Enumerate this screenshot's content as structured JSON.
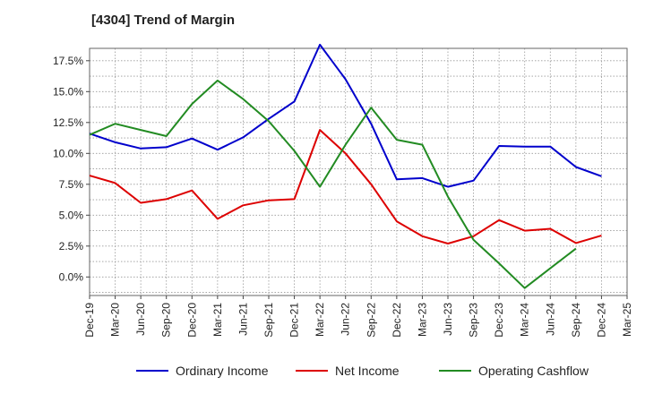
{
  "title": "[4304]  Trend of Margin",
  "chart_data": {
    "type": "line",
    "title": "[4304]  Trend of Margin",
    "xlabel": "",
    "ylabel": "",
    "ylim": [
      -1.5,
      18.5
    ],
    "x_tick_labels": [
      "Dec-19",
      "Mar-20",
      "Jun-20",
      "Sep-20",
      "Dec-20",
      "Mar-21",
      "Jun-21",
      "Sep-21",
      "Dec-21",
      "Mar-22",
      "Jun-22",
      "Sep-22",
      "Dec-22",
      "Mar-23",
      "Jun-23",
      "Sep-23",
      "Dec-23",
      "Mar-24",
      "Jun-24",
      "Sep-24",
      "Dec-24",
      "Mar-25"
    ],
    "y_ticks": [
      0.0,
      2.5,
      5.0,
      7.5,
      10.0,
      12.5,
      15.0,
      17.5
    ],
    "y_tick_labels": [
      "0.0%",
      "2.5%",
      "5.0%",
      "7.5%",
      "10.0%",
      "12.5%",
      "15.0%",
      "17.5%"
    ],
    "grid": true,
    "legend_position": "bottom",
    "series": [
      {
        "name": "Ordinary Income",
        "color": "#0000cc",
        "x": [
          "Dec-19",
          "Mar-20",
          "Jun-20",
          "Sep-20",
          "Dec-20",
          "Mar-21",
          "Jun-21",
          "Sep-21",
          "Dec-21",
          "Mar-22",
          "Jun-22",
          "Sep-22",
          "Dec-22",
          "Mar-23",
          "Jun-23",
          "Sep-23",
          "Dec-23",
          "Mar-24",
          "Jun-24",
          "Sep-24",
          "Dec-24"
        ],
        "values": [
          11.6,
          10.9,
          10.4,
          10.5,
          11.2,
          10.3,
          11.3,
          12.8,
          14.2,
          18.8,
          16.0,
          12.4,
          7.9,
          8.0,
          7.3,
          7.8,
          10.6,
          10.55,
          10.55,
          8.9,
          8.15
        ]
      },
      {
        "name": "Net Income",
        "color": "#dd0000",
        "x": [
          "Dec-19",
          "Mar-20",
          "Jun-20",
          "Sep-20",
          "Dec-20",
          "Mar-21",
          "Jun-21",
          "Sep-21",
          "Dec-21",
          "Mar-22",
          "Jun-22",
          "Sep-22",
          "Dec-22",
          "Mar-23",
          "Jun-23",
          "Sep-23",
          "Dec-23",
          "Mar-24",
          "Jun-24",
          "Sep-24",
          "Dec-24"
        ],
        "values": [
          8.2,
          7.6,
          6.0,
          6.3,
          7.0,
          4.7,
          5.8,
          6.2,
          6.3,
          11.9,
          10.0,
          7.5,
          4.5,
          3.3,
          2.7,
          3.3,
          4.6,
          3.75,
          3.9,
          2.75,
          3.35
        ]
      },
      {
        "name": "Operating Cashflow",
        "color": "#228b22",
        "x": [
          "Dec-19",
          "Mar-20",
          "Jun-20",
          "Sep-20",
          "Dec-20",
          "Mar-21",
          "Jun-21",
          "Sep-21",
          "Dec-21",
          "Mar-22",
          "Jun-22",
          "Sep-22",
          "Dec-22",
          "Mar-23",
          "Jun-23",
          "Sep-23",
          "Dec-23",
          "Mar-24",
          "Jun-24",
          "Sep-24"
        ],
        "values": [
          11.5,
          12.4,
          11.9,
          11.4,
          14.0,
          15.9,
          14.4,
          12.6,
          10.2,
          7.3,
          10.7,
          13.7,
          11.1,
          10.7,
          6.5,
          3.0,
          1.1,
          -0.9,
          0.7,
          2.3
        ]
      }
    ]
  }
}
